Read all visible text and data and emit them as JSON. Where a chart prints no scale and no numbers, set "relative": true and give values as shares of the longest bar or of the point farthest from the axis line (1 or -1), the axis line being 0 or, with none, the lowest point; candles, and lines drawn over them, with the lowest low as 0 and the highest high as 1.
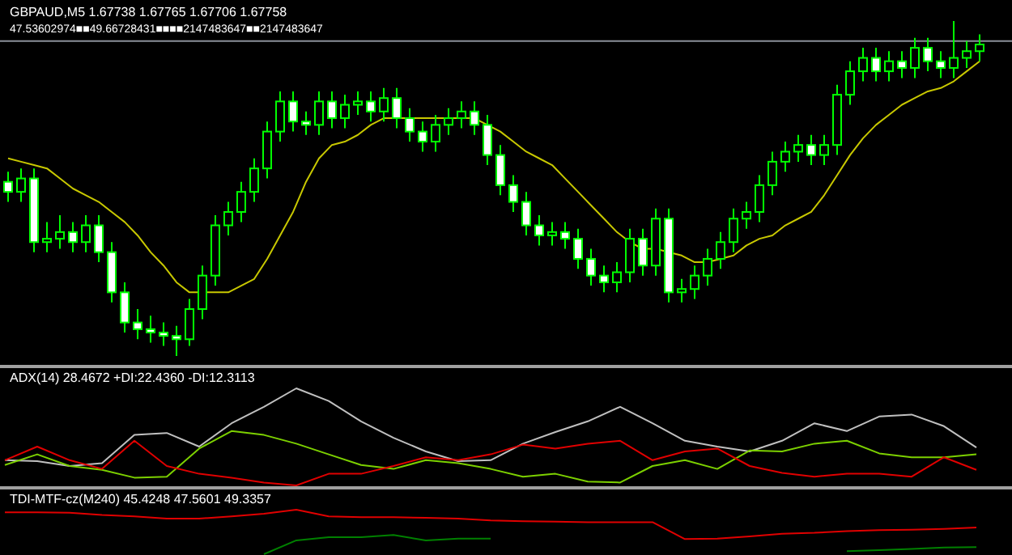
{
  "chart_data": [
    {
      "type": "candlestick",
      "title": "GBPAUD,M5  1.67738 1.67765 1.67706 1.67758",
      "subtitle": "47.53602974■■49.66728431■■■■2147483647■■2147483647",
      "relative": true,
      "color": "#00ff00",
      "categories": [
        null,
        null,
        null,
        null,
        null,
        null,
        null,
        null,
        null,
        null,
        null,
        null,
        null,
        null,
        null,
        null,
        null,
        null,
        null,
        null,
        null,
        null,
        null,
        null,
        null,
        null,
        null,
        null,
        null,
        null,
        null,
        null,
        null,
        null,
        null,
        null,
        null,
        null,
        null,
        null,
        null,
        null,
        null,
        null,
        null,
        null,
        null,
        null,
        null,
        null,
        null,
        null,
        null,
        null,
        null,
        null,
        null,
        null,
        null,
        null,
        null,
        null,
        null,
        null,
        null,
        null,
        null,
        null,
        null,
        null,
        null,
        null,
        null,
        null,
        null,
        null
      ],
      "ohlc": [
        [
          0.52,
          0.55,
          0.46,
          0.49
        ],
        [
          0.49,
          0.56,
          0.46,
          0.53
        ],
        [
          0.53,
          0.56,
          0.31,
          0.34
        ],
        [
          0.34,
          0.4,
          0.31,
          0.35
        ],
        [
          0.35,
          0.42,
          0.32,
          0.37
        ],
        [
          0.37,
          0.4,
          0.31,
          0.34
        ],
        [
          0.34,
          0.42,
          0.31,
          0.39
        ],
        [
          0.39,
          0.42,
          0.28,
          0.31
        ],
        [
          0.31,
          0.34,
          0.16,
          0.19
        ],
        [
          0.19,
          0.22,
          0.07,
          0.1
        ],
        [
          0.1,
          0.14,
          0.05,
          0.08
        ],
        [
          0.08,
          0.12,
          0.04,
          0.07
        ],
        [
          0.07,
          0.1,
          0.03,
          0.06
        ],
        [
          0.06,
          0.09,
          0.0,
          0.05
        ],
        [
          0.05,
          0.17,
          0.03,
          0.14
        ],
        [
          0.14,
          0.27,
          0.11,
          0.24
        ],
        [
          0.24,
          0.42,
          0.21,
          0.39
        ],
        [
          0.39,
          0.46,
          0.36,
          0.43
        ],
        [
          0.43,
          0.52,
          0.4,
          0.49
        ],
        [
          0.49,
          0.59,
          0.46,
          0.56
        ],
        [
          0.56,
          0.7,
          0.53,
          0.67
        ],
        [
          0.67,
          0.79,
          0.64,
          0.76
        ],
        [
          0.76,
          0.79,
          0.67,
          0.7
        ],
        [
          0.7,
          0.73,
          0.66,
          0.69
        ],
        [
          0.69,
          0.79,
          0.66,
          0.76
        ],
        [
          0.76,
          0.79,
          0.68,
          0.71
        ],
        [
          0.71,
          0.78,
          0.68,
          0.75
        ],
        [
          0.75,
          0.79,
          0.72,
          0.76
        ],
        [
          0.76,
          0.79,
          0.7,
          0.73
        ],
        [
          0.73,
          0.8,
          0.7,
          0.77
        ],
        [
          0.77,
          0.8,
          0.68,
          0.71
        ],
        [
          0.71,
          0.74,
          0.64,
          0.67
        ],
        [
          0.67,
          0.7,
          0.61,
          0.64
        ],
        [
          0.64,
          0.72,
          0.61,
          0.69
        ],
        [
          0.69,
          0.74,
          0.66,
          0.71
        ],
        [
          0.71,
          0.76,
          0.68,
          0.73
        ],
        [
          0.73,
          0.76,
          0.66,
          0.69
        ],
        [
          0.69,
          0.72,
          0.57,
          0.6
        ],
        [
          0.6,
          0.63,
          0.48,
          0.51
        ],
        [
          0.51,
          0.54,
          0.43,
          0.46
        ],
        [
          0.46,
          0.49,
          0.36,
          0.39
        ],
        [
          0.39,
          0.42,
          0.33,
          0.36
        ],
        [
          0.36,
          0.4,
          0.33,
          0.37
        ],
        [
          0.37,
          0.4,
          0.32,
          0.35
        ],
        [
          0.35,
          0.38,
          0.26,
          0.29
        ],
        [
          0.29,
          0.32,
          0.21,
          0.24
        ],
        [
          0.24,
          0.27,
          0.19,
          0.22
        ],
        [
          0.22,
          0.28,
          0.19,
          0.25
        ],
        [
          0.25,
          0.38,
          0.22,
          0.35
        ],
        [
          0.35,
          0.38,
          0.24,
          0.27
        ],
        [
          0.27,
          0.44,
          0.24,
          0.41
        ],
        [
          0.41,
          0.44,
          0.16,
          0.19
        ],
        [
          0.19,
          0.23,
          0.16,
          0.2
        ],
        [
          0.2,
          0.27,
          0.17,
          0.24
        ],
        [
          0.24,
          0.32,
          0.21,
          0.29
        ],
        [
          0.29,
          0.37,
          0.26,
          0.34
        ],
        [
          0.34,
          0.44,
          0.31,
          0.41
        ],
        [
          0.41,
          0.46,
          0.38,
          0.43
        ],
        [
          0.43,
          0.54,
          0.4,
          0.51
        ],
        [
          0.51,
          0.61,
          0.48,
          0.58
        ],
        [
          0.58,
          0.64,
          0.55,
          0.61
        ],
        [
          0.61,
          0.66,
          0.58,
          0.63
        ],
        [
          0.63,
          0.66,
          0.57,
          0.6
        ],
        [
          0.6,
          0.66,
          0.57,
          0.63
        ],
        [
          0.63,
          0.81,
          0.6,
          0.78
        ],
        [
          0.78,
          0.88,
          0.75,
          0.85
        ],
        [
          0.85,
          0.92,
          0.82,
          0.89
        ],
        [
          0.89,
          0.92,
          0.82,
          0.85
        ],
        [
          0.85,
          0.91,
          0.82,
          0.88
        ],
        [
          0.88,
          0.91,
          0.83,
          0.86
        ],
        [
          0.86,
          0.95,
          0.83,
          0.92
        ],
        [
          0.92,
          0.95,
          0.85,
          0.88
        ],
        [
          0.88,
          0.91,
          0.83,
          0.86
        ],
        [
          0.86,
          1.0,
          0.83,
          0.89
        ],
        [
          0.89,
          0.94,
          0.86,
          0.91
        ],
        [
          0.91,
          0.96,
          0.88,
          0.93
        ]
      ],
      "series": [
        {
          "type": "line",
          "color": "#c8c800",
          "values": [
            0.59,
            0.58,
            0.57,
            0.56,
            0.53,
            0.5,
            0.48,
            0.46,
            0.43,
            0.4,
            0.36,
            0.31,
            0.27,
            0.22,
            0.19,
            0.19,
            0.19,
            0.19,
            0.21,
            0.23,
            0.29,
            0.36,
            0.43,
            0.52,
            0.59,
            0.63,
            0.64,
            0.66,
            0.69,
            0.71,
            0.71,
            0.71,
            0.71,
            0.71,
            0.71,
            0.71,
            0.71,
            0.69,
            0.67,
            0.64,
            0.61,
            0.59,
            0.57,
            0.53,
            0.49,
            0.45,
            0.41,
            0.37,
            0.34,
            0.32,
            0.32,
            0.31,
            0.3,
            0.28,
            0.28,
            0.29,
            0.3,
            0.33,
            0.35,
            0.36,
            0.39,
            0.41,
            0.43,
            0.48,
            0.54,
            0.6,
            0.65,
            0.69,
            0.72,
            0.75,
            0.77,
            0.79,
            0.8,
            0.82,
            0.85,
            0.88
          ]
        }
      ],
      "ref_lines": [
        {
          "axis": "y",
          "value": 0.94,
          "color": "#8a8f99"
        }
      ]
    },
    {
      "type": "line",
      "title": "ADX(14) 28.4672 +DI:22.4360 -DI:12.3113",
      "relative": true,
      "categories": [
        null,
        null,
        null,
        null,
        null,
        null,
        null,
        null,
        null,
        null,
        null,
        null,
        null,
        null,
        null,
        null,
        null,
        null,
        null,
        null,
        null,
        null,
        null,
        null,
        null,
        null,
        null,
        null,
        null,
        null,
        null
      ],
      "series": [
        {
          "color": "#c0c0c0",
          "values": [
            0.26,
            0.25,
            0.2,
            0.23,
            0.52,
            0.54,
            0.4,
            0.64,
            0.81,
            1,
            0.87,
            0.66,
            0.49,
            0.35,
            0.25,
            0.26,
            0.43,
            0.55,
            0.66,
            0.81,
            0.64,
            0.46,
            0.4,
            0.35,
            0.46,
            0.64,
            0.56,
            0.71,
            0.73,
            0.61,
            0.39
          ]
        },
        {
          "color": "#7cd000",
          "values": [
            0.21,
            0.32,
            0.2,
            0.16,
            0.08,
            0.09,
            0.38,
            0.56,
            0.52,
            0.43,
            0.32,
            0.21,
            0.17,
            0.26,
            0.23,
            0.17,
            0.09,
            0.12,
            0.04,
            0.03,
            0.2,
            0.26,
            0.17,
            0.36,
            0.35,
            0.43,
            0.46,
            0.33,
            0.29,
            0.29,
            0.32
          ]
        },
        {
          "color": "#e00000",
          "values": [
            0.26,
            0.4,
            0.26,
            0.17,
            0.46,
            0.2,
            0.12,
            0.08,
            0.03,
            0,
            0.12,
            0.12,
            0.2,
            0.29,
            0.26,
            0.32,
            0.42,
            0.38,
            0.43,
            0.46,
            0.26,
            0.35,
            0.38,
            0.2,
            0.13,
            0.09,
            0.12,
            0.12,
            0.09,
            0.29,
            0.16
          ]
        }
      ]
    },
    {
      "type": "line",
      "title": "TDI-MTF-cz(M240) 45.4248 47.5601 49.3357",
      "relative": true,
      "categories": [
        null,
        null,
        null,
        null,
        null,
        null,
        null,
        null,
        null,
        null,
        null,
        null,
        null,
        null,
        null,
        null,
        null,
        null,
        null,
        null,
        null,
        null,
        null,
        null,
        null,
        null,
        null,
        null,
        null,
        null,
        null
      ],
      "series": [
        {
          "color": "#e00000",
          "values": [
            0.94,
            0.94,
            0.93,
            0.88,
            0.85,
            0.8,
            0.8,
            0.85,
            0.91,
            1,
            0.85,
            0.83,
            0.83,
            0.82,
            0.8,
            0.76,
            0.74,
            0.73,
            0.72,
            0.72,
            0.72,
            0.34,
            0.35,
            0.4,
            0.46,
            0.48,
            0.52,
            0.54,
            0.55,
            0.57,
            0.6
          ]
        },
        {
          "color": "#008000",
          "values": [
            null,
            null,
            null,
            null,
            null,
            null,
            null,
            null,
            0,
            0.31,
            0.38,
            0.38,
            0.43,
            0.31,
            0.35,
            0.35,
            null,
            null,
            null,
            null,
            null,
            null,
            null,
            null,
            null,
            null,
            0.07,
            0.09,
            0.12,
            0.15,
            0.16
          ]
        }
      ]
    }
  ]
}
